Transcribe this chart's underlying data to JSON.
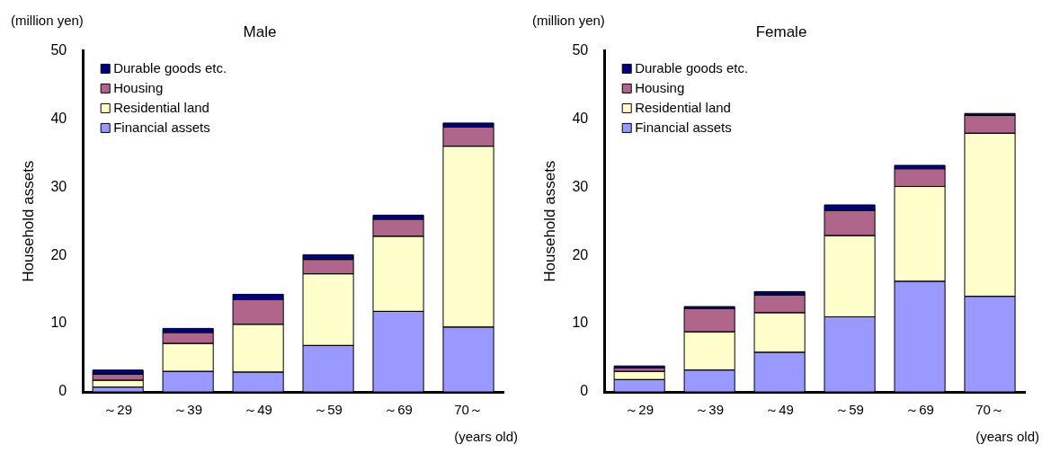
{
  "chart_data": [
    {
      "type": "bar",
      "title": "Male",
      "ylabel": "Household assets",
      "categories": [
        "～29",
        "～39",
        "～49",
        "～59",
        "～69",
        "70～"
      ],
      "stacked": true,
      "ylim": [
        0,
        50
      ],
      "yticks": [
        0,
        10,
        20,
        30,
        40,
        50
      ],
      "grid": false,
      "legend": "top left",
      "annotations": [
        "(million yen)",
        "(years old)"
      ],
      "series": [
        {
          "name": "Financial assets",
          "color": "#9999ff",
          "values": [
            0.7,
            3.0,
            2.9,
            6.8,
            11.8,
            9.5
          ]
        },
        {
          "name": "Residential land",
          "color": "#ffffcc",
          "values": [
            1.0,
            4.1,
            7.0,
            10.5,
            11.0,
            26.5
          ]
        },
        {
          "name": "Housing",
          "color": "#b0668a",
          "values": [
            0.9,
            1.6,
            3.6,
            2.1,
            2.5,
            2.8
          ]
        },
        {
          "name": "Durable goods etc.",
          "color": "#000080",
          "values": [
            0.6,
            0.6,
            0.8,
            0.7,
            0.6,
            0.6
          ]
        }
      ]
    },
    {
      "type": "bar",
      "title": "Female",
      "ylabel": "Household assets",
      "categories": [
        "～29",
        "～39",
        "～49",
        "～59",
        "～69",
        "70～"
      ],
      "stacked": true,
      "ylim": [
        0,
        50
      ],
      "yticks": [
        0,
        10,
        20,
        30,
        40,
        50
      ],
      "grid": false,
      "legend": "top left",
      "annotations": [
        "(million yen)",
        "(years old)"
      ],
      "series": [
        {
          "name": "Financial assets",
          "color": "#9999ff",
          "values": [
            1.8,
            3.2,
            5.8,
            11.0,
            16.2,
            14.0
          ]
        },
        {
          "name": "Residential land",
          "color": "#ffffcc",
          "values": [
            1.2,
            5.6,
            5.8,
            11.9,
            13.9,
            23.9
          ]
        },
        {
          "name": "Housing",
          "color": "#b0668a",
          "values": [
            0.5,
            3.4,
            2.6,
            3.7,
            2.6,
            2.6
          ]
        },
        {
          "name": "Durable goods etc.",
          "color": "#000080",
          "values": [
            0.3,
            0.3,
            0.5,
            0.8,
            0.5,
            0.3
          ]
        }
      ]
    }
  ]
}
